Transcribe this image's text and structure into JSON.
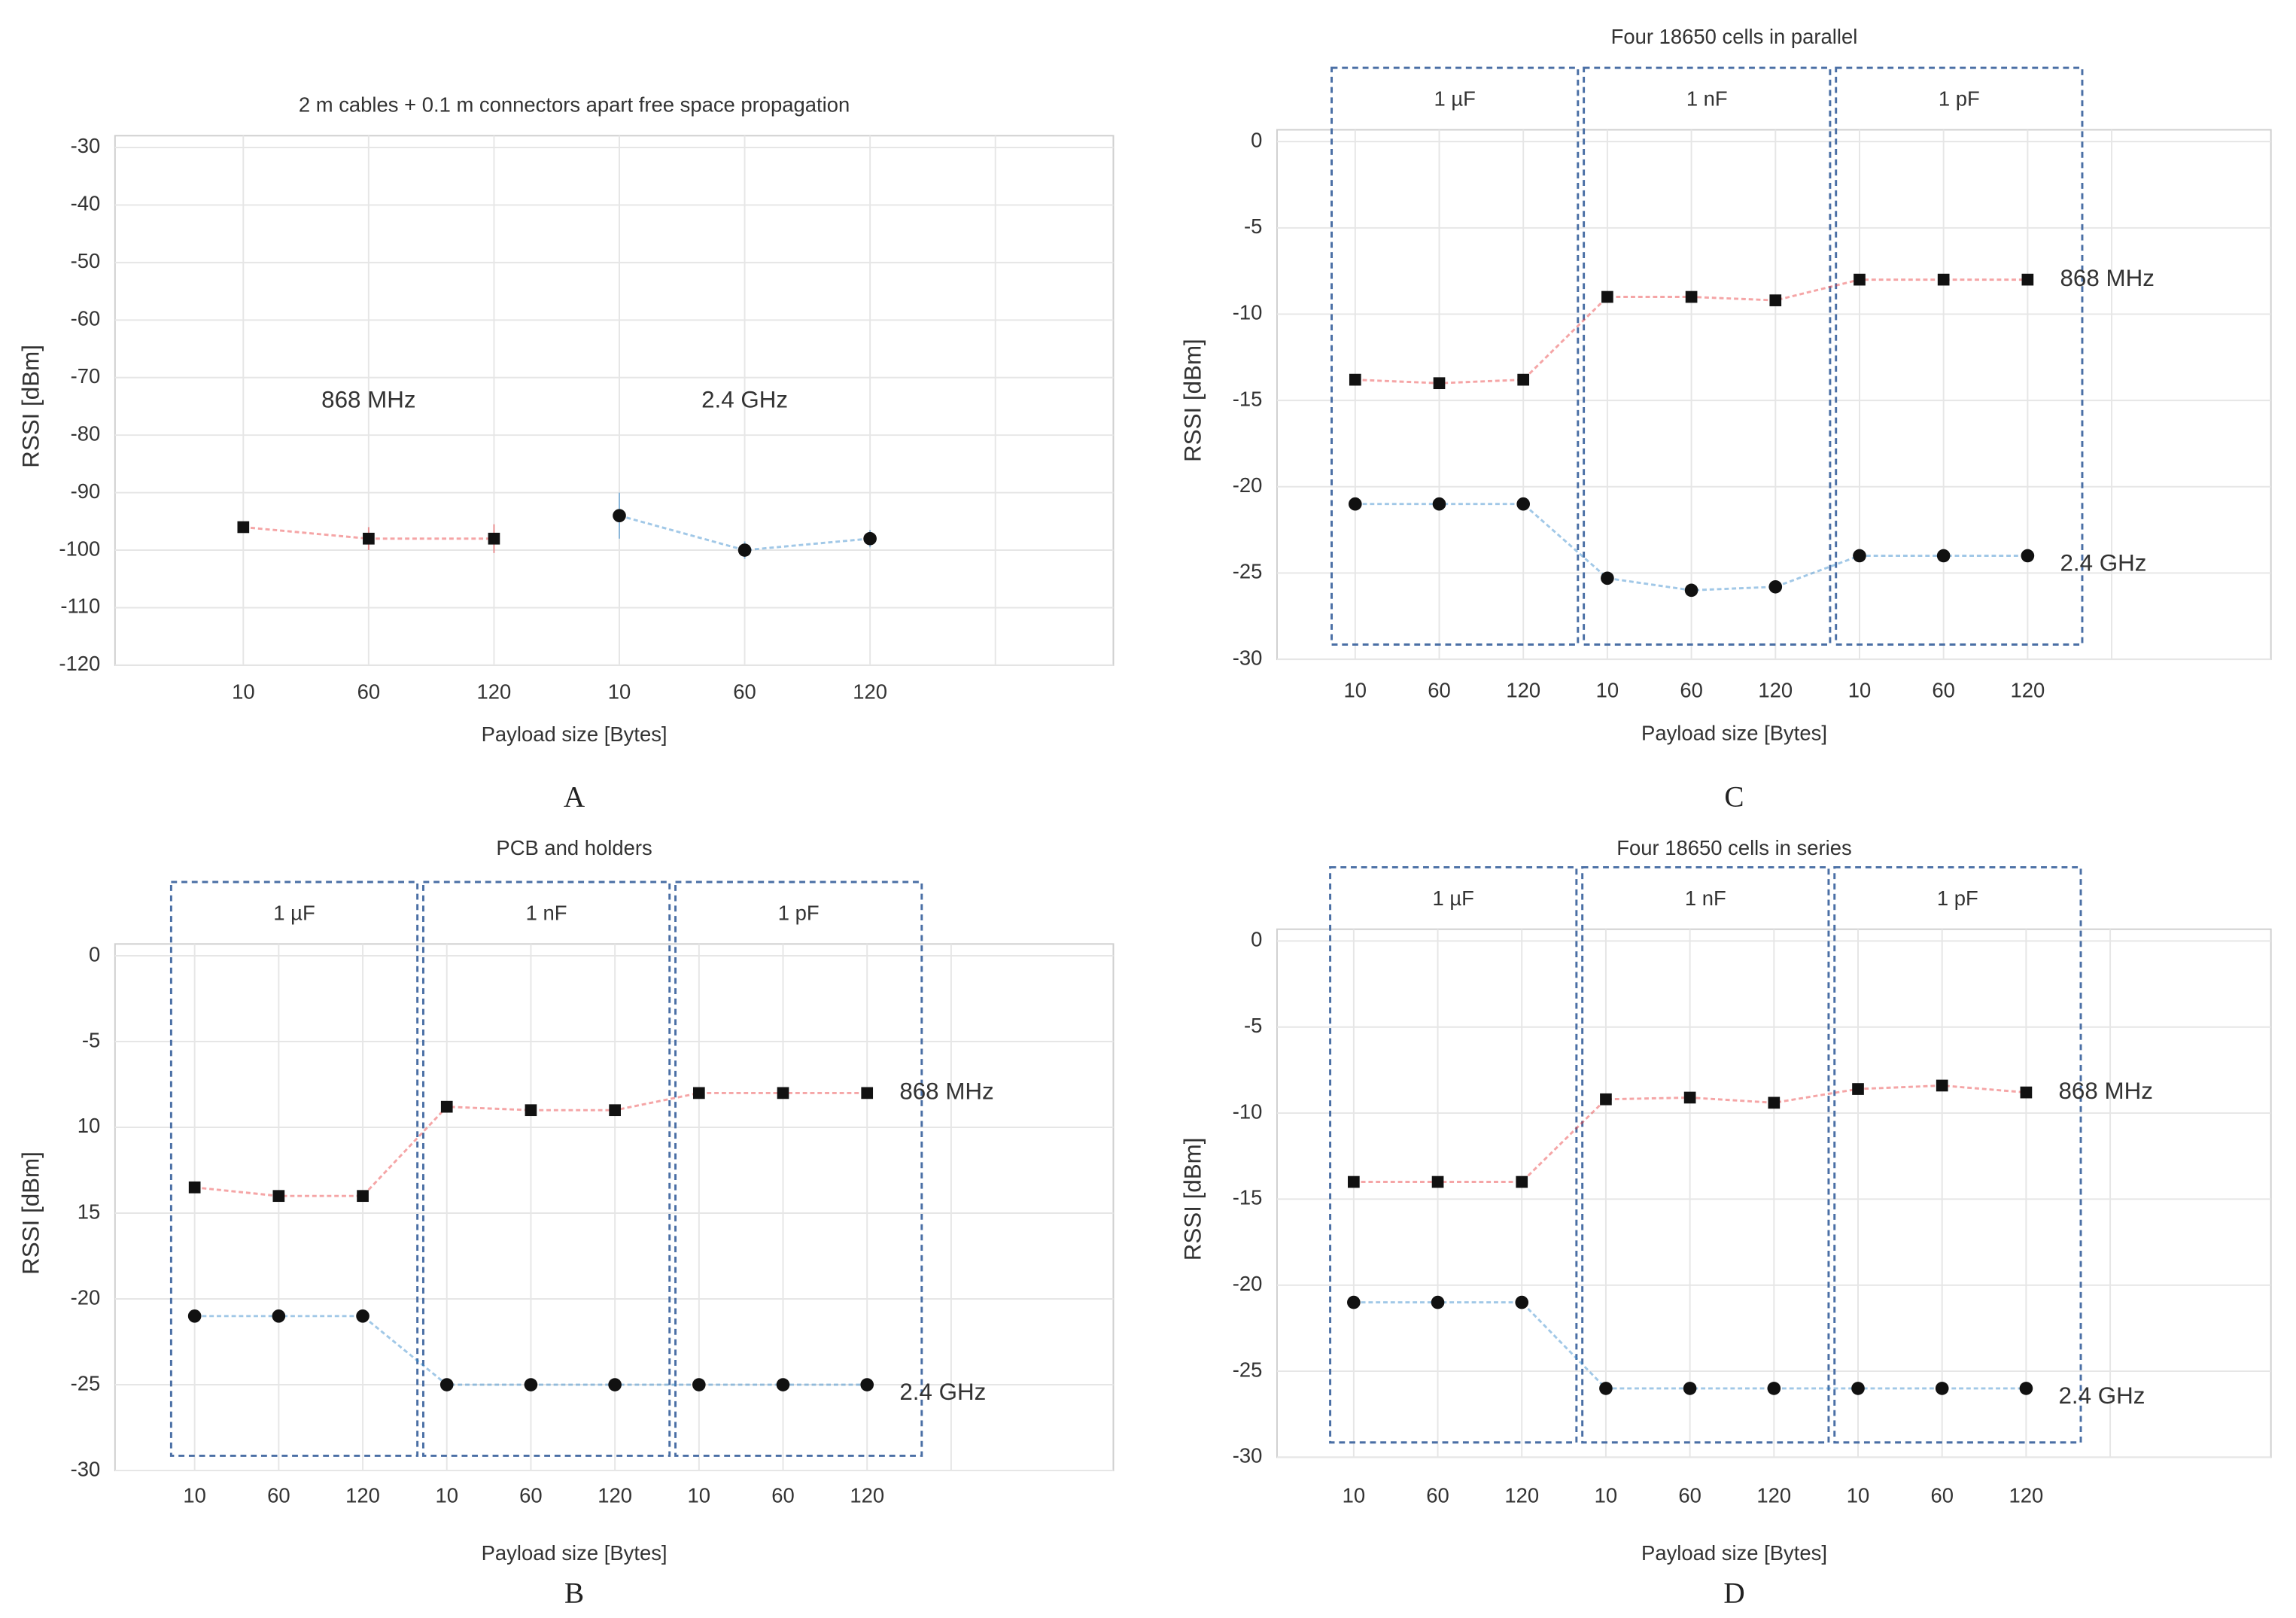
{
  "chart_data": [
    {
      "type": "line",
      "panel": "A",
      "title": "2 m cables + 0.1 m connectors apart free space propagation",
      "xlabel": "Payload size [Bytes]",
      "ylabel": "RSSI [dBm]",
      "categories": [
        "10",
        "60",
        "120",
        "10",
        "60",
        "120"
      ],
      "ylim": [
        -120,
        -30
      ],
      "yticks": [
        -30,
        -40,
        -50,
        -60,
        -70,
        -80,
        -90,
        -100,
        -110,
        -120
      ],
      "grid": true,
      "series": [
        {
          "name": "868 MHz",
          "color": "#e8383a",
          "marker": "square",
          "values": [
            -96,
            -98,
            -98,
            null,
            null,
            null
          ],
          "errors": [
            0.5,
            2,
            2.5,
            null,
            null,
            null
          ]
        },
        {
          "name": "2.4 GHz",
          "color": "#2e86c9",
          "marker": "circle",
          "values": [
            null,
            null,
            null,
            -94,
            -100,
            -98
          ],
          "errors": [
            null,
            null,
            null,
            4,
            1.5,
            1.5
          ]
        }
      ]
    },
    {
      "type": "line",
      "panel": "B",
      "title": "PCB and holders",
      "xlabel": "Payload size [Bytes]",
      "ylabel": "RSSI [dBm]",
      "categories": [
        "10",
        "60",
        "120",
        "10",
        "60",
        "120",
        "10",
        "60",
        "120"
      ],
      "boxes": [
        "1 µF",
        "1 nF",
        "1 pF"
      ],
      "ylim": [
        -30,
        0
      ],
      "yticks": [
        0,
        -5,
        {
          "value": -10,
          "label": "10"
        },
        {
          "value": -15,
          "label": "15"
        },
        -20,
        -25,
        -30
      ],
      "grid": true,
      "series": [
        {
          "name": "868 MHz",
          "color": "#e8383a",
          "marker": "square",
          "values": [
            -13.5,
            -14,
            -14,
            -8.8,
            -9,
            -9,
            -8,
            -8,
            -8
          ]
        },
        {
          "name": "2.4 GHz",
          "color": "#2e86c9",
          "marker": "circle",
          "values": [
            -21,
            -21,
            -21,
            -25,
            -25,
            -25,
            -25,
            -25,
            -25
          ]
        }
      ]
    },
    {
      "type": "line",
      "panel": "C",
      "title": "Four 18650 cells in parallel",
      "xlabel": "Payload size [Bytes]",
      "ylabel": "RSSI [dBm]",
      "categories": [
        "10",
        "60",
        "120",
        "10",
        "60",
        "120",
        "10",
        "60",
        "120"
      ],
      "boxes": [
        "1 µF",
        "1 nF",
        "1 pF"
      ],
      "ylim": [
        -30,
        0
      ],
      "yticks": [
        0,
        -5,
        -10,
        -15,
        -20,
        -25,
        -30
      ],
      "grid": true,
      "series": [
        {
          "name": "868 MHz",
          "color": "#e8383a",
          "marker": "square",
          "values": [
            -13.8,
            -14,
            -13.8,
            -9,
            -9,
            -9.2,
            -8,
            -8,
            -8
          ]
        },
        {
          "name": "2.4 GHz",
          "color": "#2e86c9",
          "marker": "circle",
          "values": [
            -21,
            -21,
            -21,
            -25.3,
            -26,
            -25.8,
            -24,
            -24,
            -24
          ]
        }
      ]
    },
    {
      "type": "line",
      "panel": "D",
      "title": "Four 18650 cells in series",
      "xlabel": "Payload size [Bytes]",
      "ylabel": "RSSI [dBm]",
      "categories": [
        "10",
        "60",
        "120",
        "10",
        "60",
        "120",
        "10",
        "60",
        "120"
      ],
      "boxes": [
        "1 µF",
        "1 nF",
        "1 pF"
      ],
      "ylim": [
        -30,
        0
      ],
      "yticks": [
        0,
        -5,
        -10,
        -15,
        -20,
        -25,
        -30
      ],
      "grid": true,
      "series": [
        {
          "name": "868 MHz",
          "color": "#e8383a",
          "marker": "square",
          "values": [
            -14,
            -14,
            -14,
            -9.2,
            -9.1,
            -9.4,
            -8.6,
            -8.4,
            -8.8
          ]
        },
        {
          "name": "2.4 GHz",
          "color": "#2e86c9",
          "marker": "circle",
          "values": [
            -21,
            -21,
            -21,
            -26,
            -26,
            -26,
            -26,
            -26,
            -26
          ]
        }
      ]
    }
  ]
}
